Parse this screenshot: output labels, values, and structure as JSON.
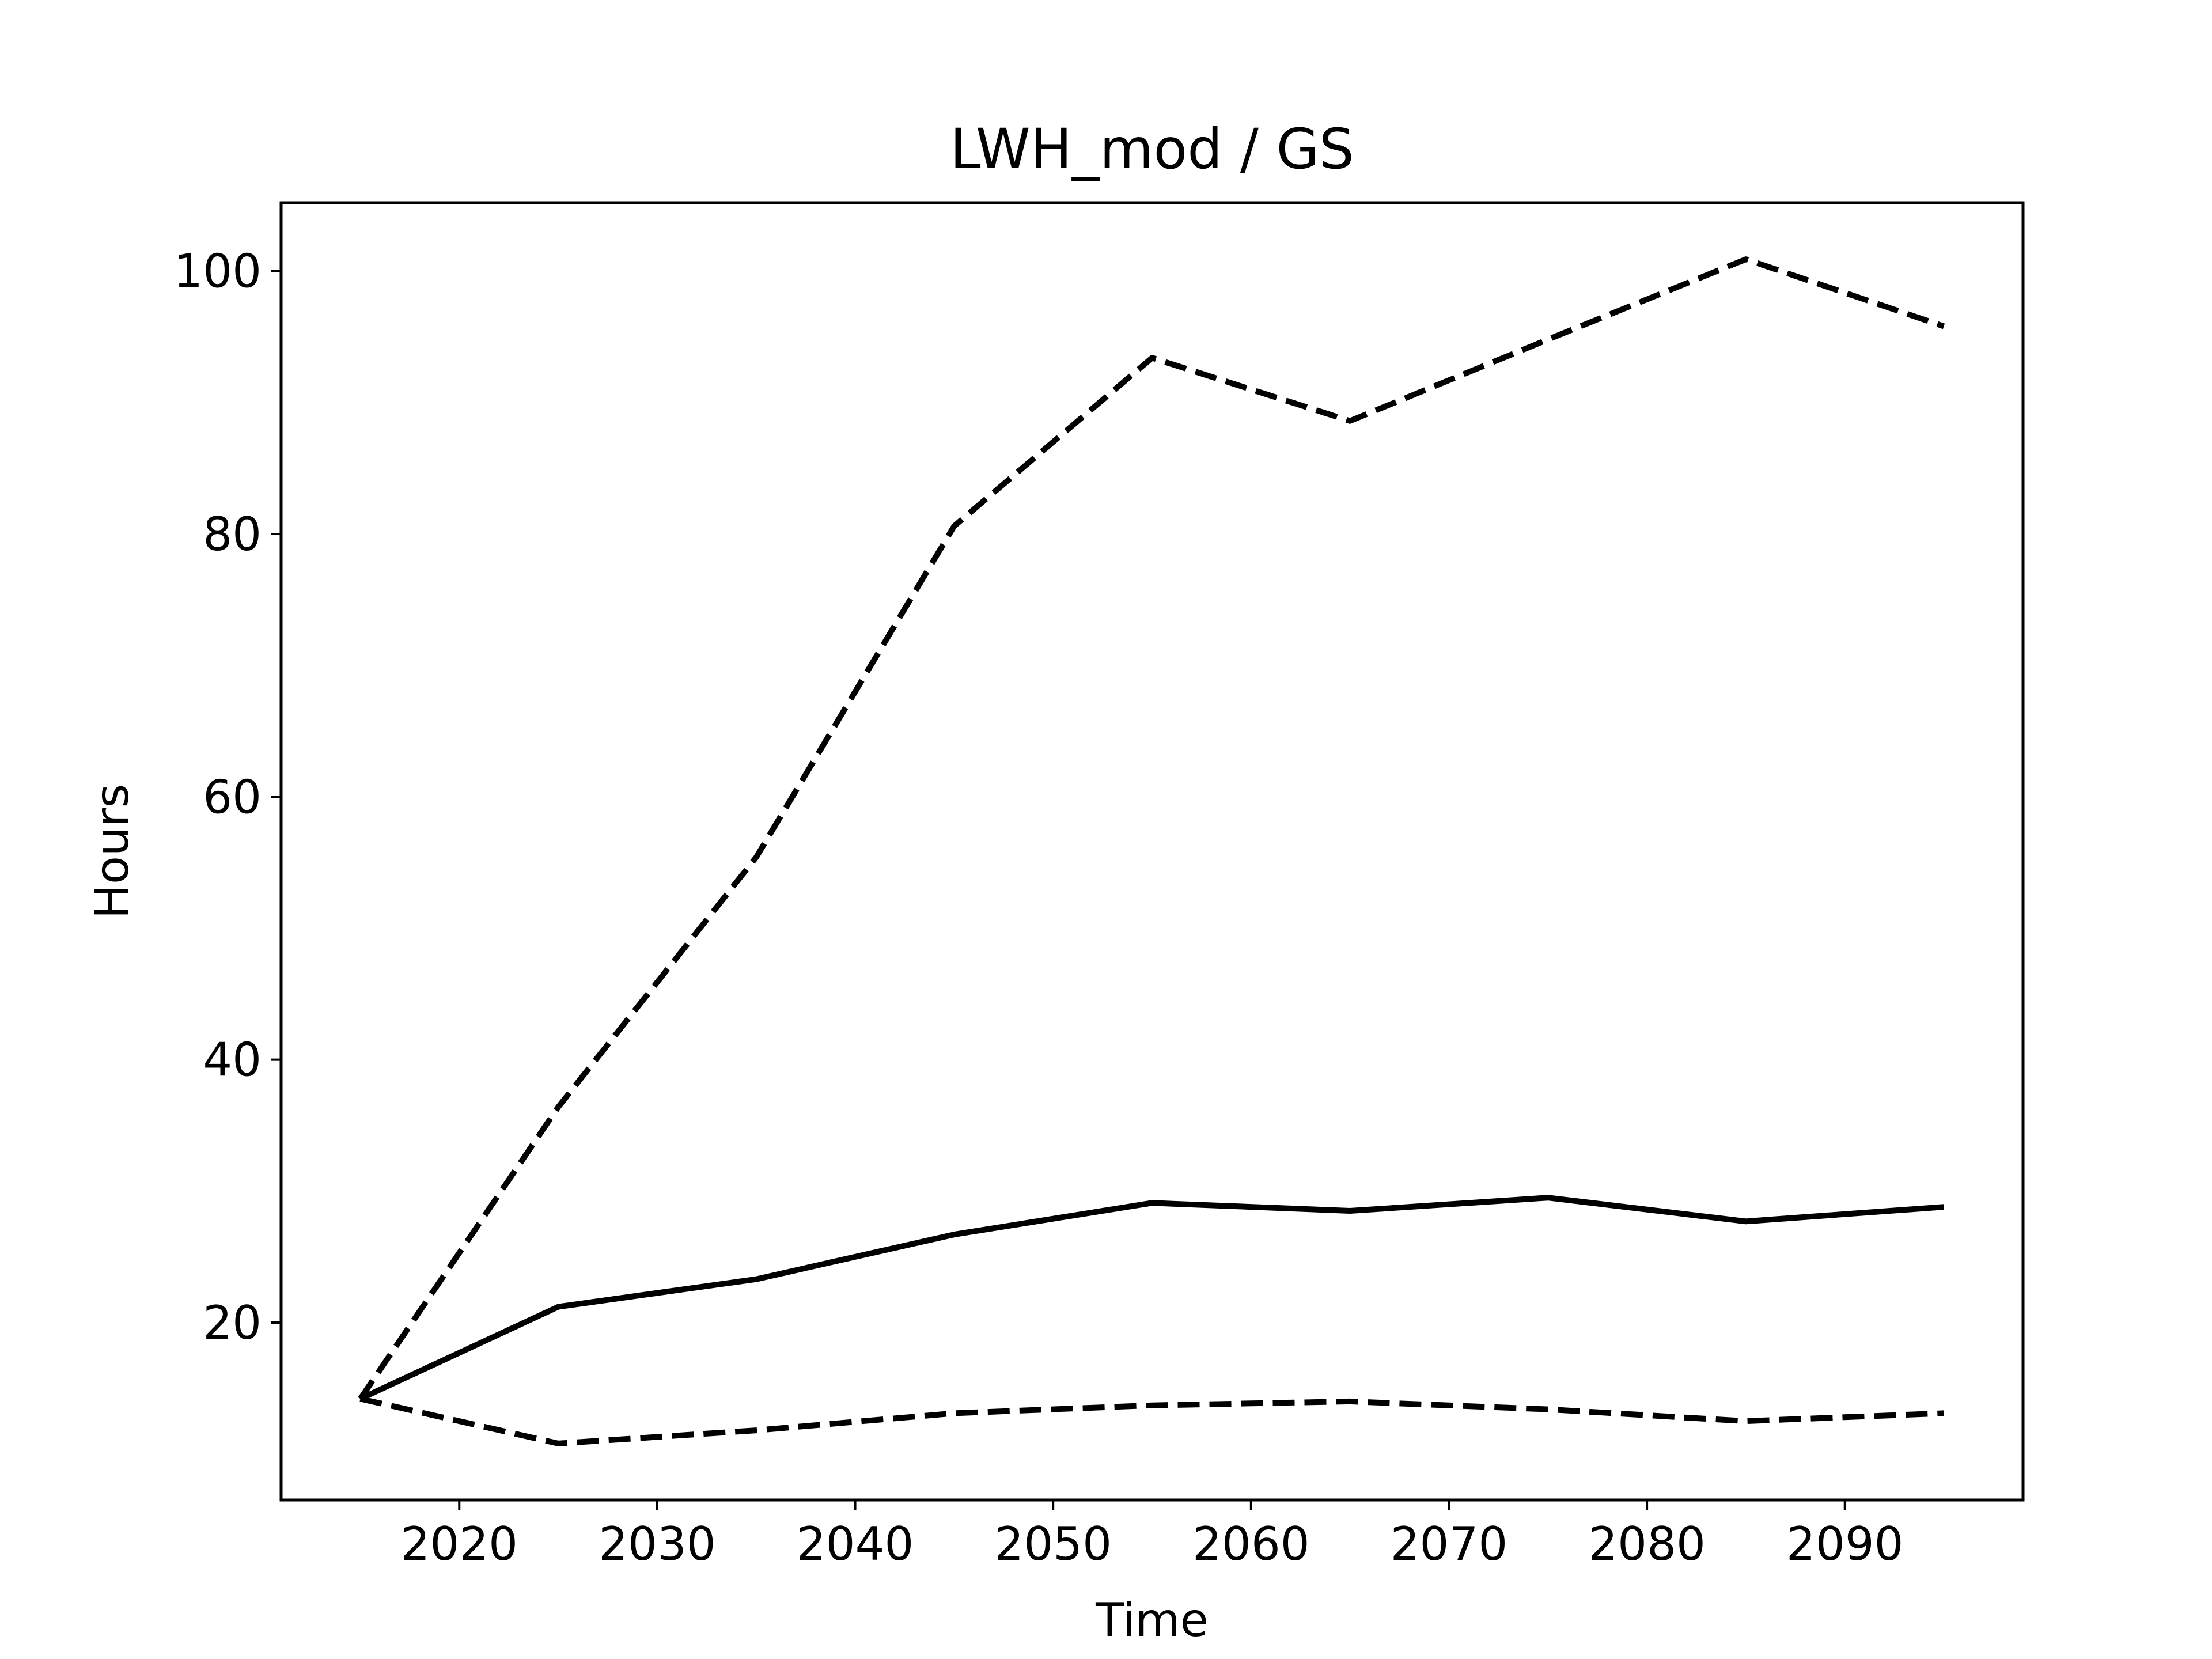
{
  "chart_data": {
    "type": "line",
    "title": "LWH_mod / GS",
    "xlabel": "Time",
    "ylabel": "Hours",
    "xlim": [
      2011,
      2099
    ],
    "ylim": [
      6.5,
      105.2
    ],
    "x_ticks": [
      2020,
      2030,
      2040,
      2050,
      2060,
      2070,
      2080,
      2090
    ],
    "y_ticks": [
      20,
      40,
      60,
      80,
      100
    ],
    "grid": false,
    "legend": "none",
    "line_color": "#000000",
    "x": [
      2015,
      2025,
      2035,
      2045,
      2055,
      2065,
      2075,
      2085,
      2095
    ],
    "series": [
      {
        "style": "dashed",
        "values": [
          14.2,
          36.4,
          55.4,
          80.6,
          93.4,
          88.6,
          94.8,
          100.9,
          95.8
        ]
      },
      {
        "style": "solid",
        "values": [
          14.2,
          21.2,
          23.3,
          26.7,
          29.1,
          28.5,
          29.5,
          27.7,
          28.8
        ]
      },
      {
        "style": "dashed",
        "values": [
          14.2,
          10.8,
          11.8,
          13.1,
          13.7,
          14.0,
          13.4,
          12.5,
          13.1
        ]
      }
    ]
  }
}
